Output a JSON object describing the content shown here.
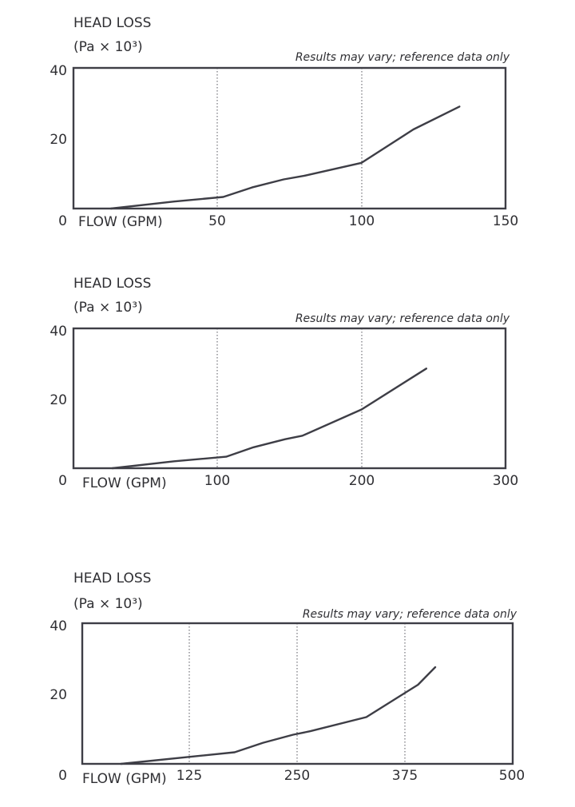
{
  "chart_data": [
    {
      "type": "line",
      "ylabel_line1": "HEAD LOSS",
      "ylabel_line2": "(Pa × 10³)",
      "xlabel": "FLOW (GPM)",
      "annotation": "Results may vary; reference data only",
      "xlim": [
        0,
        150
      ],
      "ylim": [
        0,
        40
      ],
      "x_ticks": [
        "50",
        "100",
        "150"
      ],
      "y_ticks": [
        "40",
        "20",
        "0"
      ],
      "grid_x": [
        50,
        100
      ],
      "series": [
        {
          "x": [
            13,
            35,
            52,
            62,
            73,
            80,
            100,
            118,
            134
          ],
          "y": [
            0,
            2,
            3.3,
            6,
            8.3,
            9.3,
            13,
            22.5,
            29
          ]
        }
      ]
    },
    {
      "type": "line",
      "ylabel_line1": "HEAD LOSS",
      "ylabel_line2": "(Pa × 10³)",
      "xlabel": "FLOW (GPM)",
      "annotation": "Results may vary; reference data only",
      "xlim": [
        0,
        300
      ],
      "ylim": [
        0,
        40
      ],
      "x_ticks": [
        "100",
        "200",
        "300"
      ],
      "y_ticks": [
        "40",
        "20",
        "0"
      ],
      "grid_x": [
        100,
        200
      ],
      "series": [
        {
          "x": [
            27,
            70,
            106,
            125,
            147,
            159,
            200,
            245
          ],
          "y": [
            0,
            2,
            3.3,
            6,
            8.3,
            9.3,
            16.8,
            28.5
          ]
        }
      ]
    },
    {
      "type": "line",
      "ylabel_line1": "HEAD LOSS",
      "ylabel_line2": "(Pa × 10³)",
      "xlabel": "FLOW (GPM)",
      "annotation": "Results may vary; reference data only",
      "xlim": [
        0,
        500
      ],
      "ylim": [
        0,
        40
      ],
      "x_ticks": [
        "125",
        "250",
        "375",
        "500"
      ],
      "y_ticks": [
        "40",
        "20",
        "0"
      ],
      "grid_x": [
        125,
        250,
        375
      ],
      "series": [
        {
          "x": [
            45,
            125,
            177,
            210,
            245,
            265,
            330,
            390,
            410
          ],
          "y": [
            0,
            2,
            3.3,
            6,
            8.3,
            9.3,
            13.3,
            22.5,
            27.5
          ]
        }
      ]
    }
  ]
}
